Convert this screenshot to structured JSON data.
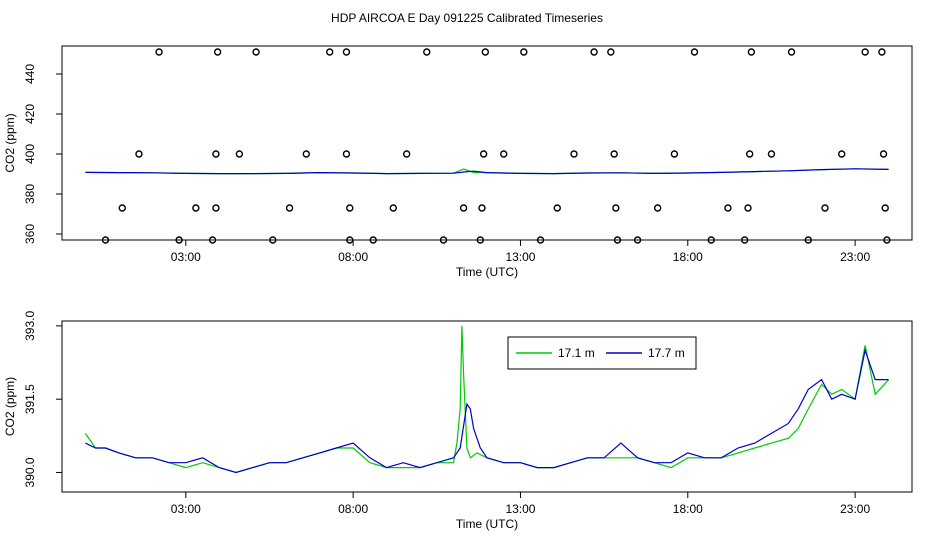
{
  "title": "HDP AIRCOA E  Day 091225  Calibrated Timeseries",
  "colors": {
    "series_1": "#00cc00",
    "series_2": "#0000cc",
    "axes": "#000000",
    "points": "#000000"
  },
  "chart_data": [
    {
      "type": "scatter",
      "xlabel": "Time (UTC)",
      "ylabel": "CO2 (ppm)",
      "xticks": [
        "03:00",
        "08:00",
        "13:00",
        "18:00",
        "23:00"
      ],
      "xtick_values": [
        3,
        8,
        13,
        18,
        23
      ],
      "yticks": [
        "360",
        "380",
        "400",
        "420",
        "440"
      ],
      "ytick_values": [
        360,
        380,
        400,
        420,
        440
      ],
      "xlim": [
        -0.7,
        24.7
      ],
      "ylim": [
        357,
        454
      ],
      "grid": false,
      "points": [
        {
          "x": 0.6,
          "y": 357
        },
        {
          "x": 1.1,
          "y": 373
        },
        {
          "x": 1.6,
          "y": 400
        },
        {
          "x": 2.2,
          "y": 451
        },
        {
          "x": 2.8,
          "y": 357
        },
        {
          "x": 3.3,
          "y": 373
        },
        {
          "x": 3.8,
          "y": 357
        },
        {
          "x": 3.9,
          "y": 373
        },
        {
          "x": 3.9,
          "y": 400
        },
        {
          "x": 3.95,
          "y": 451
        },
        {
          "x": 4.6,
          "y": 400
        },
        {
          "x": 5.1,
          "y": 451
        },
        {
          "x": 5.6,
          "y": 357
        },
        {
          "x": 6.1,
          "y": 373
        },
        {
          "x": 6.6,
          "y": 400
        },
        {
          "x": 7.3,
          "y": 451
        },
        {
          "x": 7.8,
          "y": 451
        },
        {
          "x": 7.8,
          "y": 400
        },
        {
          "x": 7.9,
          "y": 373
        },
        {
          "x": 7.9,
          "y": 357
        },
        {
          "x": 8.6,
          "y": 357
        },
        {
          "x": 9.2,
          "y": 373
        },
        {
          "x": 9.6,
          "y": 400
        },
        {
          "x": 10.2,
          "y": 451
        },
        {
          "x": 10.7,
          "y": 357
        },
        {
          "x": 11.3,
          "y": 373
        },
        {
          "x": 11.8,
          "y": 357
        },
        {
          "x": 11.85,
          "y": 373
        },
        {
          "x": 11.9,
          "y": 400
        },
        {
          "x": 11.95,
          "y": 451
        },
        {
          "x": 12.5,
          "y": 400
        },
        {
          "x": 13.1,
          "y": 451
        },
        {
          "x": 13.6,
          "y": 357
        },
        {
          "x": 14.1,
          "y": 373
        },
        {
          "x": 14.6,
          "y": 400
        },
        {
          "x": 15.2,
          "y": 451
        },
        {
          "x": 15.7,
          "y": 451
        },
        {
          "x": 15.8,
          "y": 400
        },
        {
          "x": 15.85,
          "y": 373
        },
        {
          "x": 15.9,
          "y": 357
        },
        {
          "x": 16.5,
          "y": 357
        },
        {
          "x": 17.1,
          "y": 373
        },
        {
          "x": 17.6,
          "y": 400
        },
        {
          "x": 18.2,
          "y": 451
        },
        {
          "x": 18.7,
          "y": 357
        },
        {
          "x": 19.2,
          "y": 373
        },
        {
          "x": 19.7,
          "y": 357
        },
        {
          "x": 19.8,
          "y": 373
        },
        {
          "x": 19.85,
          "y": 400
        },
        {
          "x": 19.9,
          "y": 451
        },
        {
          "x": 20.5,
          "y": 400
        },
        {
          "x": 21.1,
          "y": 451
        },
        {
          "x": 21.6,
          "y": 357
        },
        {
          "x": 22.1,
          "y": 373
        },
        {
          "x": 22.6,
          "y": 400
        },
        {
          "x": 23.3,
          "y": 451
        },
        {
          "x": 23.8,
          "y": 451
        },
        {
          "x": 23.85,
          "y": 400
        },
        {
          "x": 23.9,
          "y": 373
        },
        {
          "x": 23.95,
          "y": 357
        }
      ],
      "series": [
        {
          "x": [
            0.0,
            1.0,
            2.0,
            3.0,
            4.0,
            5.0,
            6.0,
            7.0,
            8.0,
            9.0,
            10.0,
            11.0,
            11.3,
            11.6,
            12.0,
            13.0,
            14.0,
            15.0,
            16.0,
            17.0,
            18.0,
            19.0,
            20.0,
            21.0,
            22.0,
            23.0,
            24.0
          ],
          "y": [
            390.8,
            390.7,
            390.6,
            390.3,
            390.2,
            390.2,
            390.3,
            390.7,
            390.5,
            390.2,
            390.3,
            390.4,
            392.5,
            390.8,
            390.7,
            390.3,
            390.2,
            390.5,
            390.6,
            390.3,
            390.5,
            390.8,
            391.2,
            391.6,
            392.2,
            392.6,
            392.3
          ]
        },
        {
          "x": [
            0.0,
            1.0,
            2.0,
            3.0,
            4.0,
            5.0,
            6.0,
            7.0,
            8.0,
            9.0,
            10.0,
            11.0,
            11.3,
            11.6,
            12.0,
            13.0,
            14.0,
            15.0,
            16.0,
            17.0,
            18.0,
            19.0,
            20.0,
            21.0,
            22.0,
            23.0,
            24.0
          ],
          "y": [
            390.8,
            390.7,
            390.6,
            390.3,
            390.2,
            390.2,
            390.3,
            390.7,
            390.5,
            390.2,
            390.3,
            390.4,
            391.0,
            391.4,
            390.7,
            390.3,
            390.2,
            390.5,
            390.6,
            390.3,
            390.5,
            390.8,
            391.2,
            391.6,
            392.2,
            392.6,
            392.3
          ]
        }
      ]
    },
    {
      "type": "line",
      "xlabel": "Time (UTC)",
      "ylabel": "CO2 (ppm)",
      "xticks": [
        "03:00",
        "08:00",
        "13:00",
        "18:00",
        "23:00"
      ],
      "xtick_values": [
        3,
        8,
        13,
        18,
        23
      ],
      "yticks": [
        "390.0",
        "391.5",
        "393.0"
      ],
      "ytick_values": [
        390.0,
        391.5,
        393.0
      ],
      "xlim": [
        -0.7,
        24.7
      ],
      "ylim": [
        389.6,
        393.1
      ],
      "grid": false,
      "legend_position": "top-right",
      "series": [
        {
          "name": "17.1 m",
          "x": [
            0.0,
            0.3,
            0.6,
            1.0,
            1.5,
            2.0,
            2.5,
            3.0,
            3.5,
            4.0,
            4.5,
            5.0,
            5.5,
            6.0,
            6.5,
            7.0,
            7.5,
            8.0,
            8.5,
            9.0,
            9.5,
            10.0,
            10.5,
            11.0,
            11.1,
            11.2,
            11.25,
            11.3,
            11.4,
            11.5,
            11.7,
            12.0,
            12.5,
            13.0,
            13.5,
            14.0,
            14.5,
            15.0,
            15.5,
            16.0,
            16.5,
            17.0,
            17.5,
            18.0,
            18.5,
            19.0,
            19.5,
            20.0,
            20.5,
            21.0,
            21.3,
            21.6,
            22.0,
            22.3,
            22.6,
            23.0,
            23.3,
            23.6,
            24.0
          ],
          "y": [
            390.8,
            390.5,
            390.5,
            390.4,
            390.3,
            390.3,
            390.2,
            390.1,
            390.2,
            390.1,
            390.0,
            390.1,
            390.2,
            390.2,
            390.3,
            390.4,
            390.5,
            390.5,
            390.2,
            390.1,
            390.1,
            390.1,
            390.2,
            390.2,
            390.6,
            391.3,
            393.0,
            392.0,
            390.5,
            390.3,
            390.4,
            390.3,
            390.2,
            390.2,
            390.1,
            390.1,
            390.2,
            390.3,
            390.3,
            390.3,
            390.3,
            390.2,
            390.1,
            390.3,
            390.3,
            390.3,
            390.4,
            390.5,
            390.6,
            390.7,
            390.9,
            391.3,
            391.8,
            391.6,
            391.7,
            391.5,
            392.6,
            391.6,
            391.9
          ]
        },
        {
          "name": "17.7 m",
          "x": [
            0.0,
            0.3,
            0.6,
            1.0,
            1.5,
            2.0,
            2.5,
            3.0,
            3.5,
            4.0,
            4.5,
            5.0,
            5.5,
            6.0,
            6.5,
            7.0,
            7.5,
            8.0,
            8.5,
            9.0,
            9.5,
            10.0,
            10.5,
            11.0,
            11.2,
            11.4,
            11.5,
            11.6,
            11.8,
            12.0,
            12.5,
            13.0,
            13.5,
            14.0,
            14.5,
            15.0,
            15.5,
            16.0,
            16.5,
            17.0,
            17.5,
            18.0,
            18.5,
            19.0,
            19.5,
            20.0,
            20.5,
            21.0,
            21.3,
            21.6,
            22.0,
            22.3,
            22.6,
            23.0,
            23.3,
            23.6,
            24.0
          ],
          "y": [
            390.6,
            390.5,
            390.5,
            390.4,
            390.3,
            390.3,
            390.2,
            390.2,
            390.3,
            390.1,
            390.0,
            390.1,
            390.2,
            390.2,
            390.3,
            390.4,
            390.5,
            390.6,
            390.3,
            390.1,
            390.2,
            390.1,
            390.2,
            390.3,
            390.5,
            391.4,
            391.3,
            390.9,
            390.5,
            390.3,
            390.2,
            390.2,
            390.1,
            390.1,
            390.2,
            390.3,
            390.3,
            390.6,
            390.3,
            390.2,
            390.2,
            390.4,
            390.3,
            390.3,
            390.5,
            390.6,
            390.8,
            391.0,
            391.3,
            391.7,
            391.9,
            391.5,
            391.6,
            391.5,
            392.5,
            391.9,
            391.9
          ]
        }
      ]
    }
  ]
}
